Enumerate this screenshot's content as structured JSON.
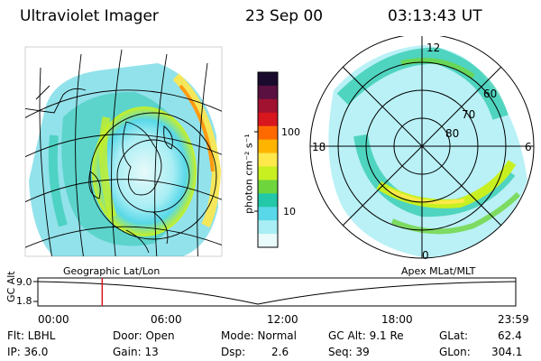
{
  "header": {
    "title": "Ultraviolet Imager",
    "date": "23 Sep 00",
    "time": "03:13:43 UT"
  },
  "colorbar": {
    "unit_label": "photon cm⁻² s⁻¹",
    "tick_labels": [
      "100",
      "10"
    ],
    "colors": [
      "#1a0b2e",
      "#5a1040",
      "#a01230",
      "#d8161e",
      "#ff6a00",
      "#ffb400",
      "#ffe84a",
      "#c8f020",
      "#6ed63c",
      "#22c8a8",
      "#58d8e8",
      "#a8eef4",
      "#e8fafa"
    ]
  },
  "left_map": {
    "caption": "Geographic Lat/Lon"
  },
  "right_map": {
    "caption": "Apex MLat/MLT",
    "mlt_labels": [
      "12",
      "18",
      "6",
      "0"
    ],
    "mlat_labels": [
      "60",
      "70",
      "80"
    ]
  },
  "orbit_plot": {
    "ylabel": "GC Alt",
    "ytick_top": "9.0",
    "ytick_bottom": "1.8",
    "xticks": [
      "00:00",
      "06:00",
      "12:00",
      "18:00",
      "23:59"
    ],
    "marker_time": "03:13:43"
  },
  "params": {
    "flt": "Flt: LBHL",
    "ip": "IP: 36.0",
    "door": "Door: Open",
    "gain": "Gain: 13",
    "mode": "Mode: Normal",
    "dsp_label": "Dsp:",
    "dsp_value": "2.6",
    "gc_alt": "GC Alt: 9.1 Re",
    "seq": "Seq: 39",
    "glat_label": "GLat:",
    "glat_value": "62.4",
    "glon_label": "GLon:",
    "glon_value": "304.1"
  }
}
